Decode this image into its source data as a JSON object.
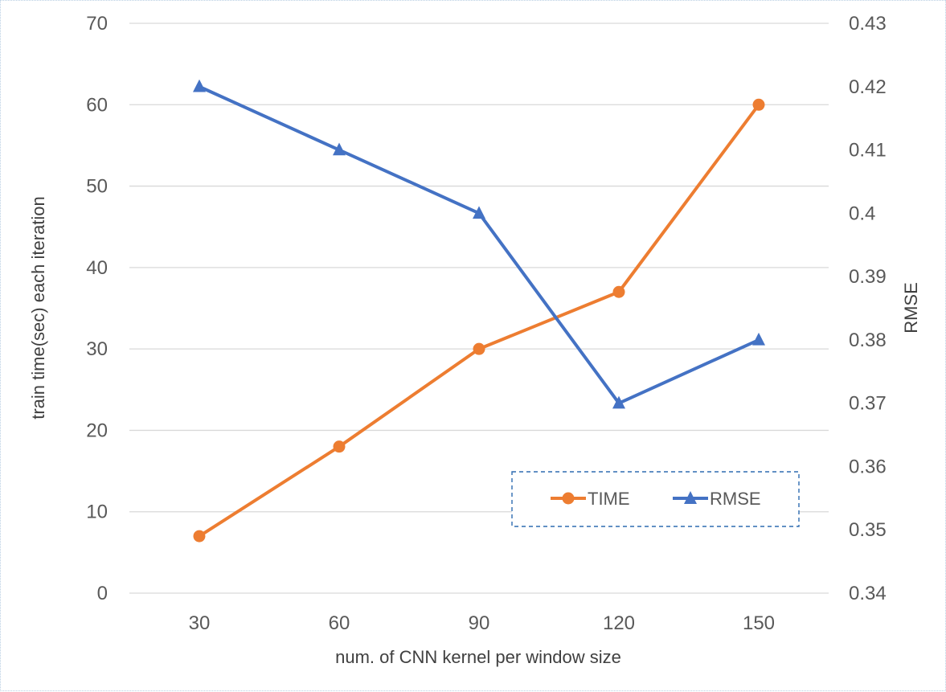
{
  "chart_data": {
    "type": "line",
    "title": "",
    "xlabel": "num. of CNN kernel per window size",
    "ylabel": "train time(sec) each iteration",
    "y2label": "RMSE",
    "categories": [
      "30",
      "60",
      "90",
      "120",
      "150"
    ],
    "ylim": [
      0,
      70
    ],
    "y_ticks": [
      "0",
      "10",
      "20",
      "30",
      "40",
      "50",
      "60",
      "70"
    ],
    "y2lim": [
      0.34,
      0.43
    ],
    "y2_ticks": [
      "0.34",
      "0.35",
      "0.36",
      "0.37",
      "0.38",
      "0.39",
      "0.4",
      "0.41",
      "0.42",
      "0.43"
    ],
    "grid": true,
    "legend_position": "bottom-right",
    "series": [
      {
        "name": "TIME",
        "axis": "left",
        "marker": "circle",
        "color": "#ed7d31",
        "values": [
          7,
          18,
          30,
          37,
          60
        ]
      },
      {
        "name": "RMSE",
        "axis": "right",
        "marker": "triangle",
        "color": "#4472c4",
        "values": [
          0.42,
          0.41,
          0.4,
          0.37,
          0.38
        ]
      }
    ]
  }
}
